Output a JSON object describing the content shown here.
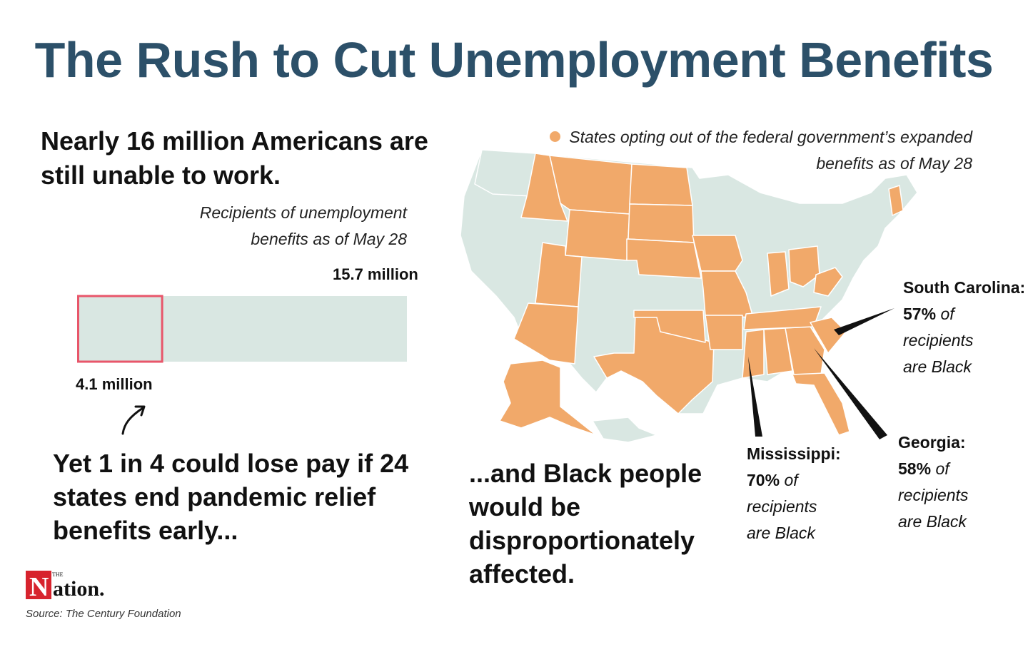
{
  "title": "The Rush to Cut Unemployment Benefits",
  "headline1": "Nearly 16 million Americans are still unable to work.",
  "bar_caption": "Recipients of unemployment benefits as of May 28",
  "headline2": "Yet 1 in 4 could lose pay if 24 states end pandemic relief benefits early...",
  "headline3": "...and Black people would be disproportionately affected.",
  "legend": "States opting out of the federal government’s expanded benefits as of May 28",
  "logo": {
    "small": "THE",
    "word": "Nation."
  },
  "source": "Source: The Century Foundation",
  "colors": {
    "title": "#2c5069",
    "opt_out": "#f1a96a",
    "other": "#d9e7e2",
    "highlight": "#e8566a"
  },
  "chart_data": [
    {
      "type": "bar",
      "categories": [
        "Recipients of unemployment benefits as of May 28",
        "Could lose pay"
      ],
      "values": [
        15.7,
        4.1
      ],
      "value_labels": [
        "15.7 million",
        "4.1 million"
      ],
      "orientation": "horizontal"
    },
    {
      "type": "map",
      "callouts": [
        {
          "state": "South Carolina:",
          "pct": "57%",
          "of": "of",
          "line2": "recipients",
          "line3": "are Black",
          "value": 57
        },
        {
          "state": "Mississippi:",
          "pct": "70%",
          "of": "of",
          "line2": "recipients",
          "line3": "are Black",
          "value": 70
        },
        {
          "state": "Georgia:",
          "pct": "58%",
          "of": "of",
          "line2": "recipients",
          "line3": "are Black",
          "value": 58
        }
      ]
    }
  ]
}
